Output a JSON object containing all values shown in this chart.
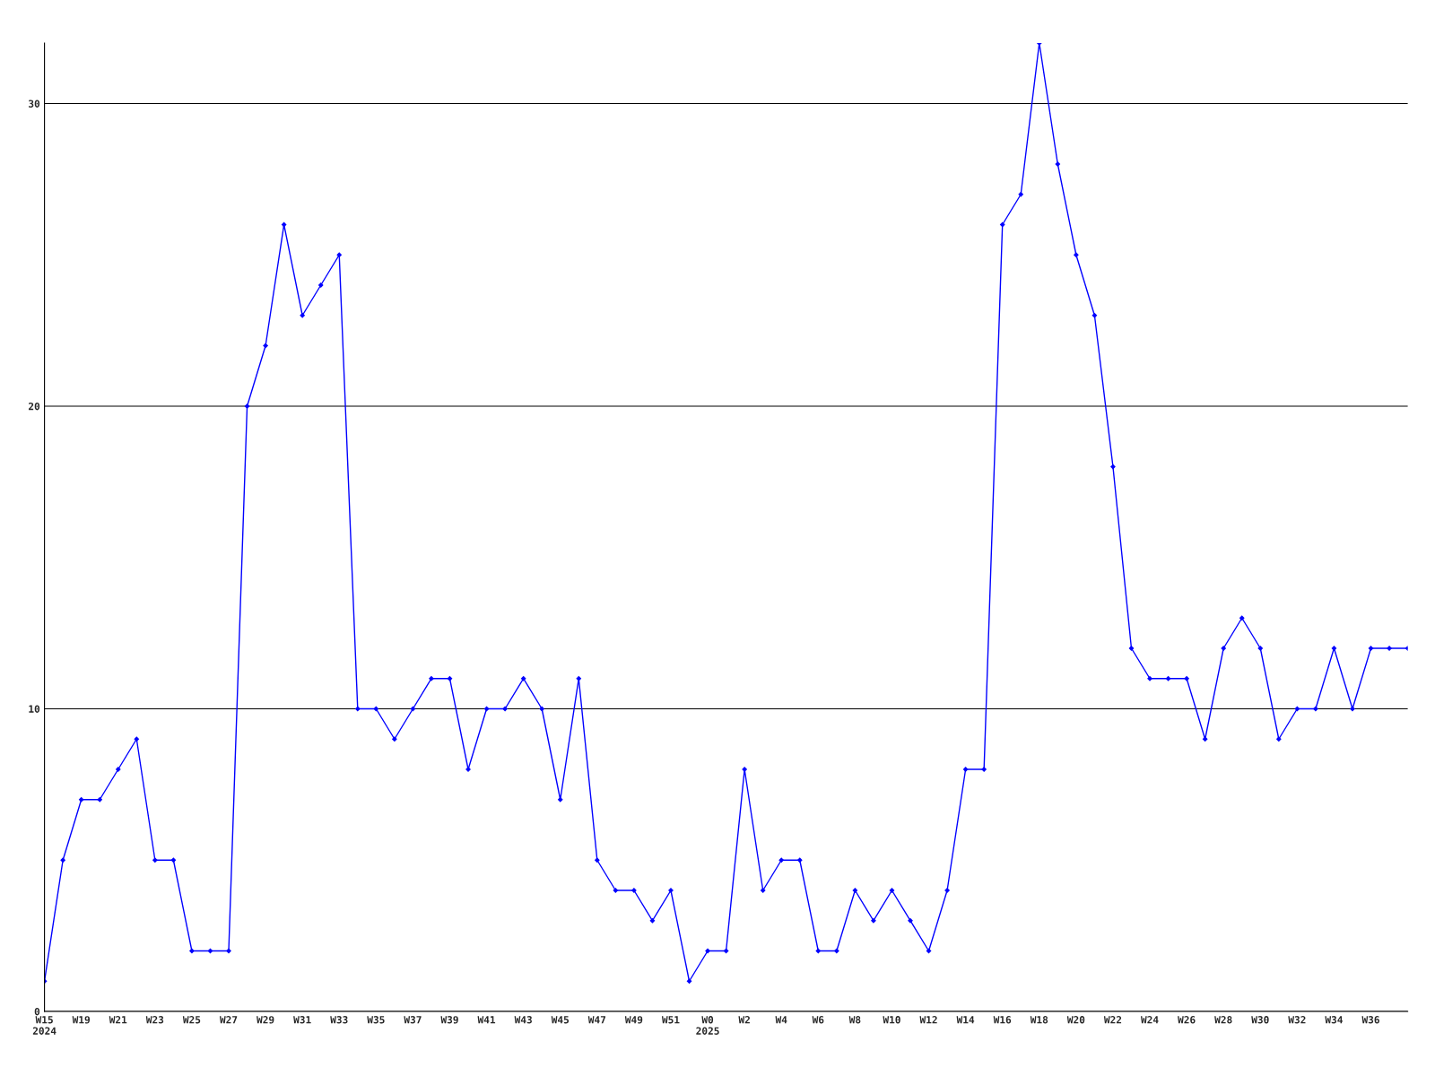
{
  "chart_data": {
    "type": "line",
    "categories": [
      "W15\n2024",
      null,
      "W19",
      null,
      "W21",
      null,
      "W23",
      null,
      "W25",
      null,
      "W27",
      null,
      "W29",
      null,
      "W31",
      null,
      "W33",
      null,
      "W35",
      null,
      "W37",
      null,
      "W39",
      null,
      "W41",
      null,
      "W43",
      null,
      "W45",
      null,
      "W47",
      null,
      "W49",
      null,
      "W51",
      null,
      "W0\n2025",
      null,
      "W2",
      null,
      "W4",
      null,
      "W6",
      null,
      "W8",
      null,
      "W10",
      null,
      "W12",
      null,
      "W14",
      null,
      "W16",
      null,
      "W18",
      null,
      "W20",
      null,
      "W22",
      null,
      "W24",
      null,
      "W26",
      null,
      "W28",
      null,
      "W30",
      null,
      "W32",
      null,
      "W34",
      null,
      "W36",
      null,
      null
    ],
    "series": [
      {
        "color": "#0000ff",
        "values": [
          1,
          5,
          7,
          7,
          8,
          9,
          5,
          5,
          2,
          2,
          2,
          20,
          22,
          26,
          23,
          24,
          25,
          10,
          10,
          9,
          10,
          11,
          11,
          8,
          10,
          10,
          11,
          10,
          7,
          11,
          5,
          4,
          4,
          3,
          4,
          1,
          2,
          2,
          8,
          4,
          5,
          5,
          2,
          2,
          4,
          3,
          4,
          3,
          2,
          4,
          8,
          8,
          26,
          27,
          32,
          28,
          25,
          23,
          18,
          12,
          11,
          11,
          11,
          9,
          12,
          13,
          12,
          9,
          10,
          10,
          12,
          10,
          12,
          12,
          12
        ]
      }
    ],
    "ylim": [
      0,
      32
    ],
    "yticks": [
      0,
      10,
      20,
      30
    ],
    "grid": "y",
    "marker": "diamond",
    "line_style": "solid",
    "legend": false
  }
}
